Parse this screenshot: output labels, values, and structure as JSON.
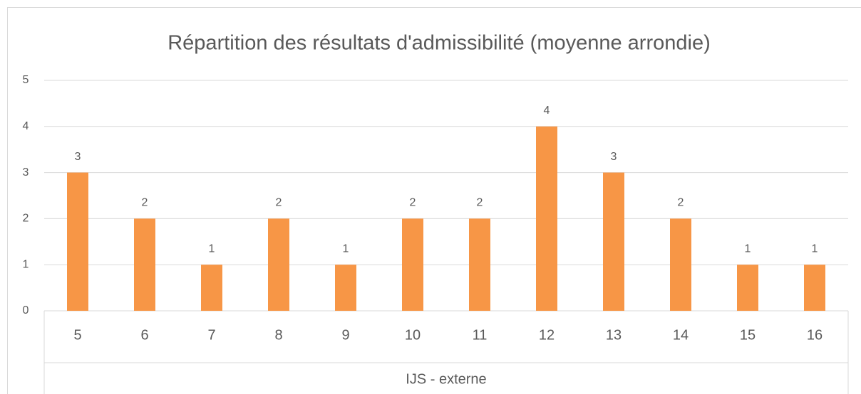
{
  "chart_data": {
    "type": "bar",
    "title": "Répartition des résultats d'admissibilité (moyenne arrondie)",
    "xlabel": "IJS - externe",
    "categories": [
      "5",
      "6",
      "7",
      "8",
      "9",
      "10",
      "11",
      "12",
      "13",
      "14",
      "15",
      "16"
    ],
    "values": [
      3,
      2,
      1,
      2,
      1,
      2,
      2,
      4,
      3,
      2,
      1,
      1
    ],
    "color": "#f79646",
    "ylim": [
      0,
      5
    ],
    "yticks": [
      0,
      1,
      2,
      3,
      4,
      5
    ],
    "grid": true
  }
}
